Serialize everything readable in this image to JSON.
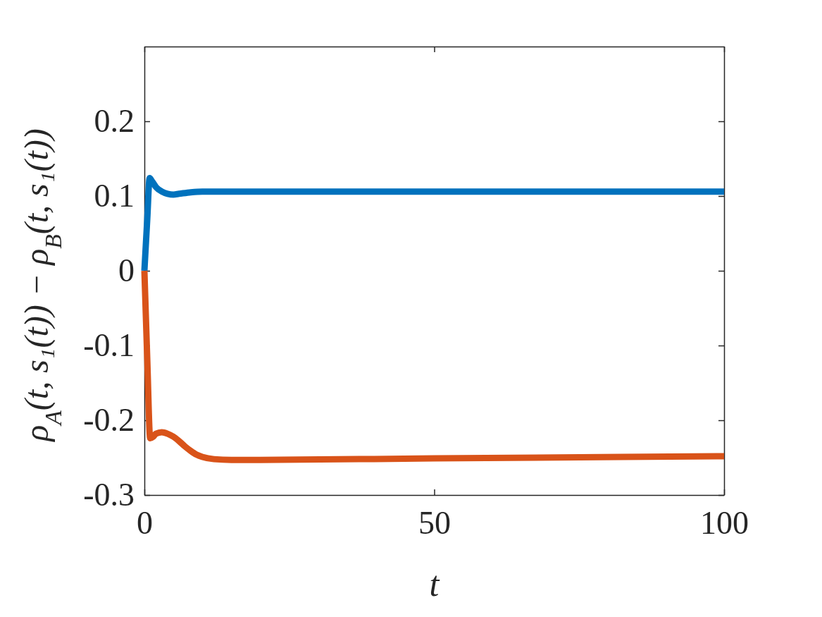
{
  "chart_data": {
    "type": "line",
    "xlabel": "t",
    "ylabel": "ρ$_{A}$(t, s₁(t)) − ρ$_{B}$(t, s₁(t))",
    "xlim": [
      0,
      100
    ],
    "ylim": [
      -0.3,
      0.3
    ],
    "xticks": [
      0,
      50,
      100
    ],
    "yticks": [
      -0.3,
      -0.2,
      -0.1,
      0,
      0.1,
      0.2
    ],
    "grid": false,
    "series": [
      {
        "color": "#0072bd",
        "x": [
          0,
          0.5,
          0.9,
          1.3,
          2,
          3,
          4,
          5,
          6,
          8,
          10,
          20,
          50,
          100
        ],
        "values": [
          0,
          0.07,
          0.124,
          0.12,
          0.112,
          0.106,
          0.103,
          0.102,
          0.103,
          0.105,
          0.106,
          0.106,
          0.106,
          0.106
        ]
      },
      {
        "color": "#d95319",
        "x": [
          0,
          0.5,
          1,
          1.5,
          2,
          3,
          4,
          5,
          6,
          7,
          8,
          9,
          10,
          12,
          15,
          20,
          50,
          100
        ],
        "values": [
          0,
          -0.12,
          -0.224,
          -0.222,
          -0.218,
          -0.216,
          -0.218,
          -0.222,
          -0.228,
          -0.235,
          -0.241,
          -0.246,
          -0.249,
          -0.252,
          -0.253,
          -0.253,
          -0.251,
          -0.248
        ]
      }
    ]
  }
}
